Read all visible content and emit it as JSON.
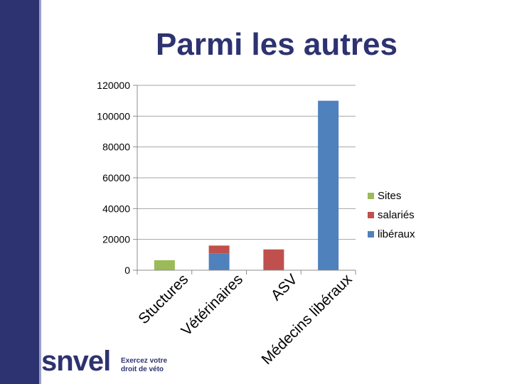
{
  "slide": {
    "title": "Parmi les autres"
  },
  "logo": {
    "word": "snvel",
    "tagline_line1": "Exercez votre",
    "tagline_line2": "droit de véto"
  },
  "colors": {
    "sidebar": "#2d3270",
    "title": "#2d3270",
    "sites": "#9bbb59",
    "salaries": "#c0504d",
    "liberaux": "#4f81bd"
  },
  "chart_data": {
    "type": "bar",
    "stacked": true,
    "categories": [
      "Stuctures",
      "Vétérinaires",
      "ASV",
      "Médecins libéraux"
    ],
    "series": [
      {
        "name": "libéraux",
        "color": "#4f81bd",
        "values": [
          0,
          11000,
          0,
          110000
        ]
      },
      {
        "name": "salariés",
        "color": "#c0504d",
        "values": [
          0,
          5000,
          13500,
          0
        ]
      },
      {
        "name": "Sites",
        "color": "#9bbb59",
        "values": [
          6500,
          0,
          0,
          0
        ]
      }
    ],
    "legend_order": [
      "Sites",
      "salariés",
      "libéraux"
    ],
    "ylim": [
      0,
      120000
    ],
    "yticks": [
      "0",
      "20000",
      "40000",
      "60000",
      "80000",
      "100000",
      "120000"
    ],
    "grid": true,
    "legend_position": "right"
  }
}
